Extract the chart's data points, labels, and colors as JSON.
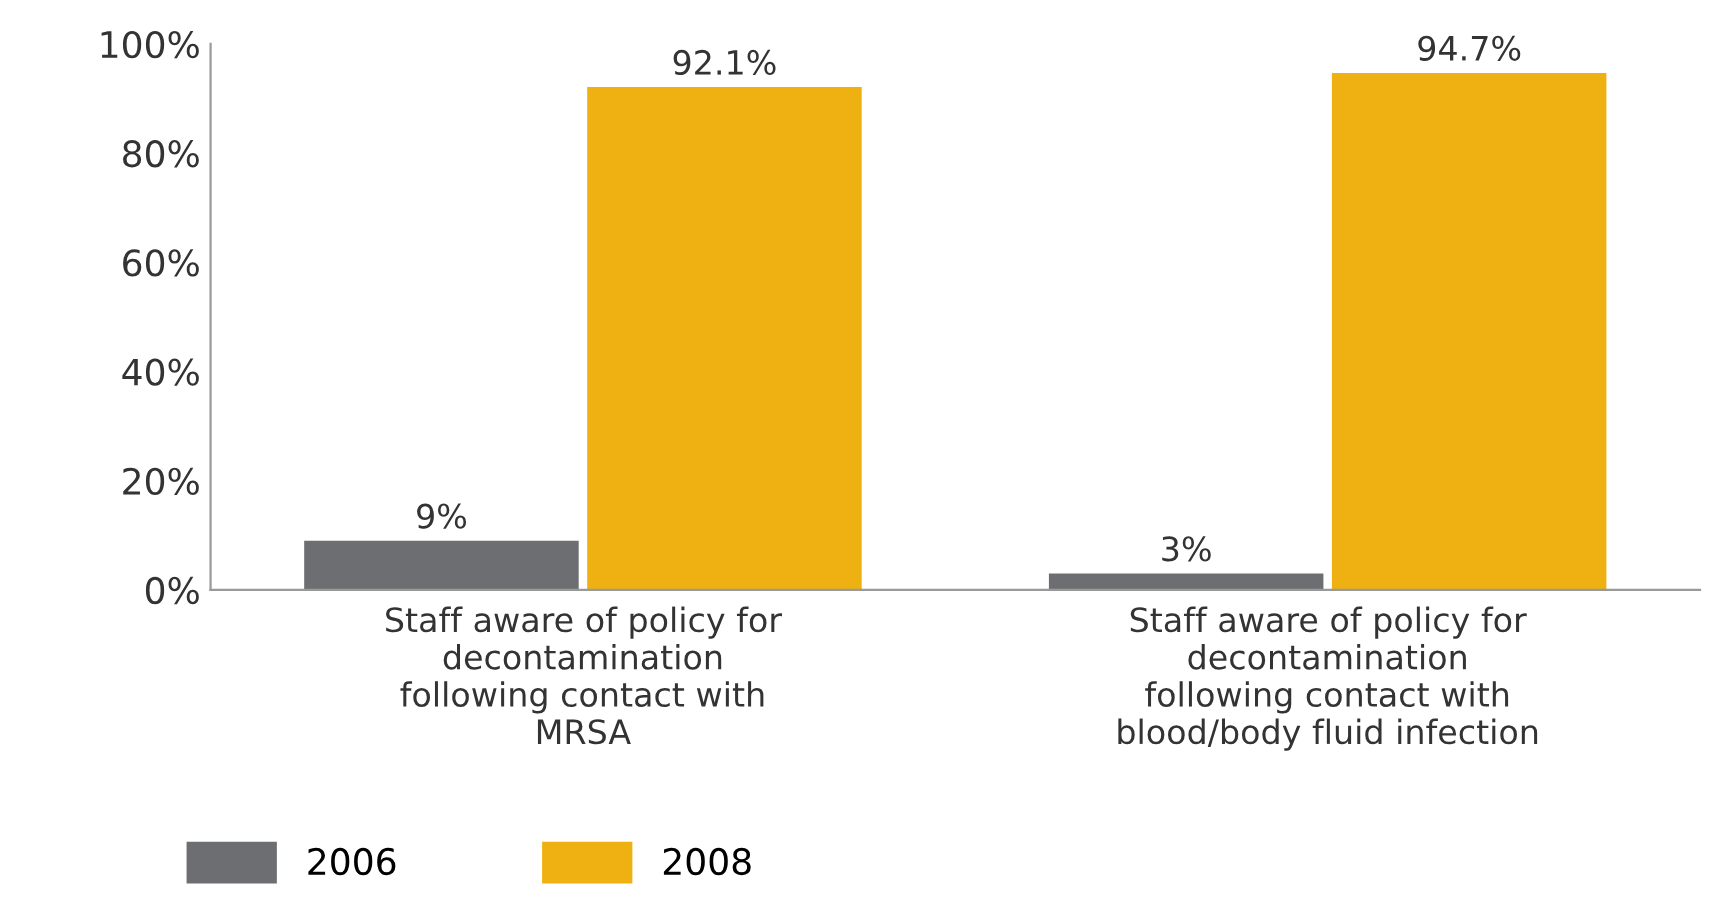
{
  "chart_data": {
    "type": "bar",
    "categories": [
      "Staff aware of policy for\ndecontamination\nfollowing contact with\nMRSA",
      "Staff aware of policy for\ndecontamination\nfollowing contact with\nblood/body fluid infection"
    ],
    "series": [
      {
        "name": "2006",
        "color": "#6d6e71",
        "values": [
          9,
          3
        ],
        "value_labels": [
          "9%",
          "3%"
        ]
      },
      {
        "name": "2008",
        "color": "#eeb111",
        "values": [
          92.1,
          94.7
        ],
        "value_labels": [
          "92.1%",
          "94.7%"
        ]
      }
    ],
    "ylim": [
      0,
      100
    ],
    "yticks": [
      {
        "value": 0,
        "label": "0%"
      },
      {
        "value": 20,
        "label": "20%"
      },
      {
        "value": 40,
        "label": "40%"
      },
      {
        "value": 60,
        "label": "60%"
      },
      {
        "value": 80,
        "label": "80%"
      },
      {
        "value": 100,
        "label": "100%"
      }
    ],
    "grid": false,
    "legend": "bottom left"
  }
}
